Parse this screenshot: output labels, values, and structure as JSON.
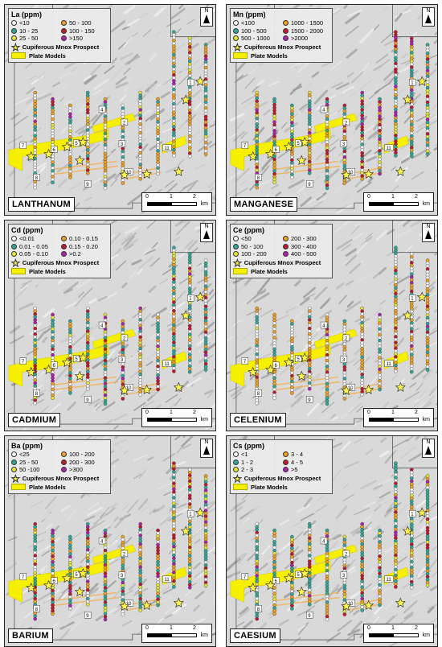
{
  "common": {
    "prospect_label": "Cupiferous Mnox Prospect",
    "plate_label": "Plate Models",
    "scale": {
      "n0": "0",
      "n1": "1",
      "n2": "2",
      "unit": "km"
    },
    "north": "N",
    "plate_numbers": [
      "1",
      "2",
      "3",
      "4",
      "5",
      "6",
      "7",
      "8",
      "9",
      "10",
      "11"
    ]
  },
  "panels": [
    {
      "id": "la",
      "legend_title": "La (ppm)",
      "map_title": "LANTHANUM",
      "classes": [
        {
          "label": "<10",
          "color": "#f4f4f4"
        },
        {
          "label": "50 - 100",
          "color": "#f0a020"
        },
        {
          "label": "10 - 25",
          "color": "#2fa79a"
        },
        {
          "label": "100 - 150",
          "color": "#c0192a"
        },
        {
          "label": "25 - 50",
          "color": "#e6e632"
        },
        {
          "label": ">150",
          "color": "#b01eb0"
        }
      ]
    },
    {
      "id": "mn",
      "legend_title": "Mn (ppm)",
      "map_title": "MANGANESE",
      "classes": [
        {
          "label": "<100",
          "color": "#f4f4f4"
        },
        {
          "label": "1000 - 1500",
          "color": "#f0a020"
        },
        {
          "label": "100 - 500",
          "color": "#2fa79a"
        },
        {
          "label": "1500 - 2000",
          "color": "#c0192a"
        },
        {
          "label": "500 - 1000",
          "color": "#e6e632"
        },
        {
          "label": ">2000",
          "color": "#b01eb0"
        }
      ]
    },
    {
      "id": "cd",
      "legend_title": "Cd (ppm)",
      "map_title": "CADMIUM",
      "classes": [
        {
          "label": "<0.01",
          "color": "#f4f4f4"
        },
        {
          "label": "0.10 - 0.15",
          "color": "#f0a020"
        },
        {
          "label": "0.01 - 0.05",
          "color": "#2fa79a"
        },
        {
          "label": "0.15 - 0.20",
          "color": "#c0192a"
        },
        {
          "label": "0.05 - 0.10",
          "color": "#e6e632"
        },
        {
          "label": ">0.2",
          "color": "#b01eb0"
        }
      ]
    },
    {
      "id": "ce",
      "legend_title": "Ce (ppm)",
      "map_title": "CELENIUM",
      "classes": [
        {
          "label": "<50",
          "color": "#f4f4f4"
        },
        {
          "label": "200 - 300",
          "color": "#f0a020"
        },
        {
          "label": "50 - 100",
          "color": "#2fa79a"
        },
        {
          "label": "300 - 400",
          "color": "#c0192a"
        },
        {
          "label": "100 - 200",
          "color": "#e6e632"
        },
        {
          "label": "400 - 500",
          "color": "#b01eb0"
        }
      ]
    },
    {
      "id": "ba",
      "legend_title": "Ba (ppm)",
      "map_title": "BARIUM",
      "classes": [
        {
          "label": "<25",
          "color": "#f4f4f4"
        },
        {
          "label": "100 - 200",
          "color": "#f0a020"
        },
        {
          "label": "25 - 50",
          "color": "#2fa79a"
        },
        {
          "label": "200 - 300",
          "color": "#c0192a"
        },
        {
          "label": "50 -100",
          "color": "#e6e632"
        },
        {
          "label": ">300",
          "color": "#b01eb0"
        }
      ]
    },
    {
      "id": "cs",
      "legend_title": "Cs (ppm)",
      "map_title": "CAESIUM",
      "classes": [
        {
          "label": "<1",
          "color": "#f4f4f4"
        },
        {
          "label": "3 - 4",
          "color": "#f0a020"
        },
        {
          "label": "1 - 2",
          "color": "#2fa79a"
        },
        {
          "label": "4 - 5",
          "color": "#c0192a"
        },
        {
          "label": "2 - 3",
          "color": "#e6e632"
        },
        {
          "label": ">5",
          "color": "#b01eb0"
        }
      ]
    }
  ]
}
